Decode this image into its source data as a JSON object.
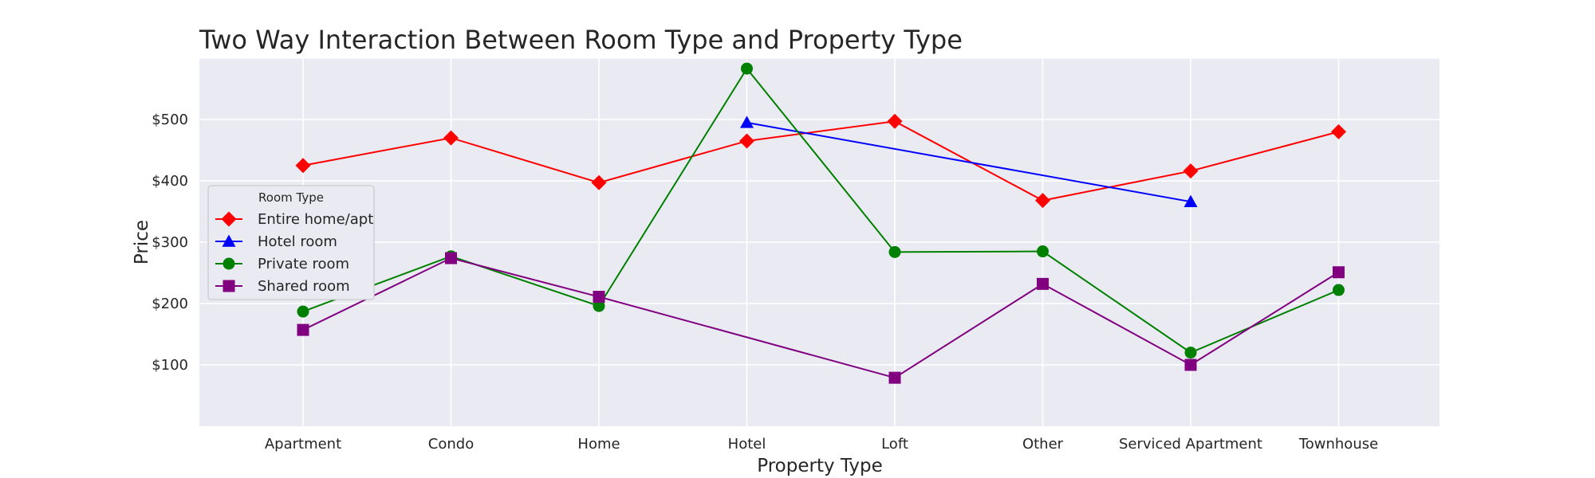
{
  "chart_data": {
    "type": "line",
    "title": "Two Way Interaction Between Room Type and Property Type",
    "xlabel": "Property Type",
    "ylabel": "Price",
    "categories": [
      "Apartment",
      "Condo",
      "Home",
      "Hotel",
      "Loft",
      "Other",
      "Serviced Apartment",
      "Townhouse"
    ],
    "yticks": [
      "$100",
      "$200",
      "$300",
      "$400",
      "$500"
    ],
    "ylim": [
      0,
      600
    ],
    "grid": true,
    "legend": {
      "title": "Room Type",
      "placement": "center-left"
    },
    "series": [
      {
        "name": "Entire home/apt",
        "color": "#ff0000",
        "marker": "diamond",
        "values": [
          425,
          470,
          397,
          465,
          497,
          368,
          416,
          480
        ]
      },
      {
        "name": "Hotel room",
        "color": "#0000ff",
        "marker": "triangle",
        "values": [
          null,
          null,
          null,
          495,
          null,
          null,
          366,
          null
        ]
      },
      {
        "name": "Private room",
        "color": "#008000",
        "marker": "circle",
        "values": [
          187,
          277,
          196,
          583,
          284,
          285,
          120,
          222
        ]
      },
      {
        "name": "Shared room",
        "color": "#800080",
        "marker": "square",
        "values": [
          157,
          274,
          211,
          null,
          79,
          232,
          100,
          251
        ]
      }
    ]
  }
}
